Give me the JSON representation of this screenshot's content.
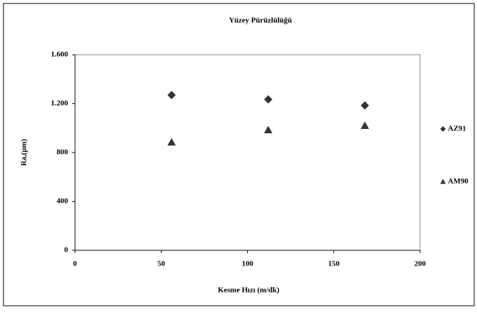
{
  "chart_data": {
    "type": "scatter",
    "title": "Yüzey Pürüzlülüğü",
    "xlabel": "Kesme Hızı (m/dk)",
    "ylabel": "Ra,(µm)",
    "x": [
      56,
      112,
      168
    ],
    "series": [
      {
        "name": "AZ91",
        "color": "#333333",
        "marker": "diamond",
        "values": [
          1270,
          1235,
          1185
        ]
      },
      {
        "name": "AM90",
        "color": "#333333",
        "marker": "triangle",
        "values": [
          885,
          985,
          1020
        ]
      }
    ],
    "xlim": [
      0,
      200
    ],
    "xticks": [
      0,
      50,
      100,
      150,
      200
    ],
    "ylim": [
      0,
      1600
    ],
    "yticks": [
      0,
      400,
      800,
      {
        "value": 1200,
        "label": "1.200"
      },
      {
        "value": 1600,
        "label": "1.600"
      }
    ],
    "legend": "right"
  }
}
